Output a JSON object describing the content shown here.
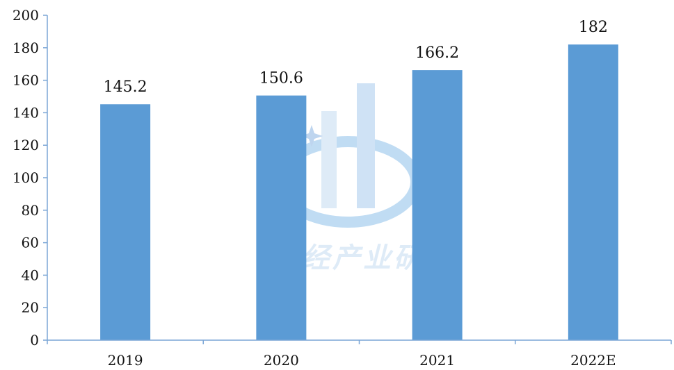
{
  "chart_data": {
    "type": "bar",
    "categories": [
      "2019",
      "2020",
      "2021",
      "2022E"
    ],
    "values": [
      145.2,
      150.6,
      166.2,
      182
    ],
    "data_labels": [
      "145.2",
      "150.6",
      "166.2",
      "182"
    ],
    "ylim": [
      0,
      200
    ],
    "y_ticks": [
      0,
      20,
      40,
      60,
      80,
      100,
      120,
      140,
      160,
      180,
      200
    ],
    "title": "",
    "xlabel": "",
    "ylabel": "",
    "grid": false,
    "legend": "none",
    "bar_color": "#5b9bd5"
  },
  "watermark": {
    "text": "华经产业研究"
  }
}
